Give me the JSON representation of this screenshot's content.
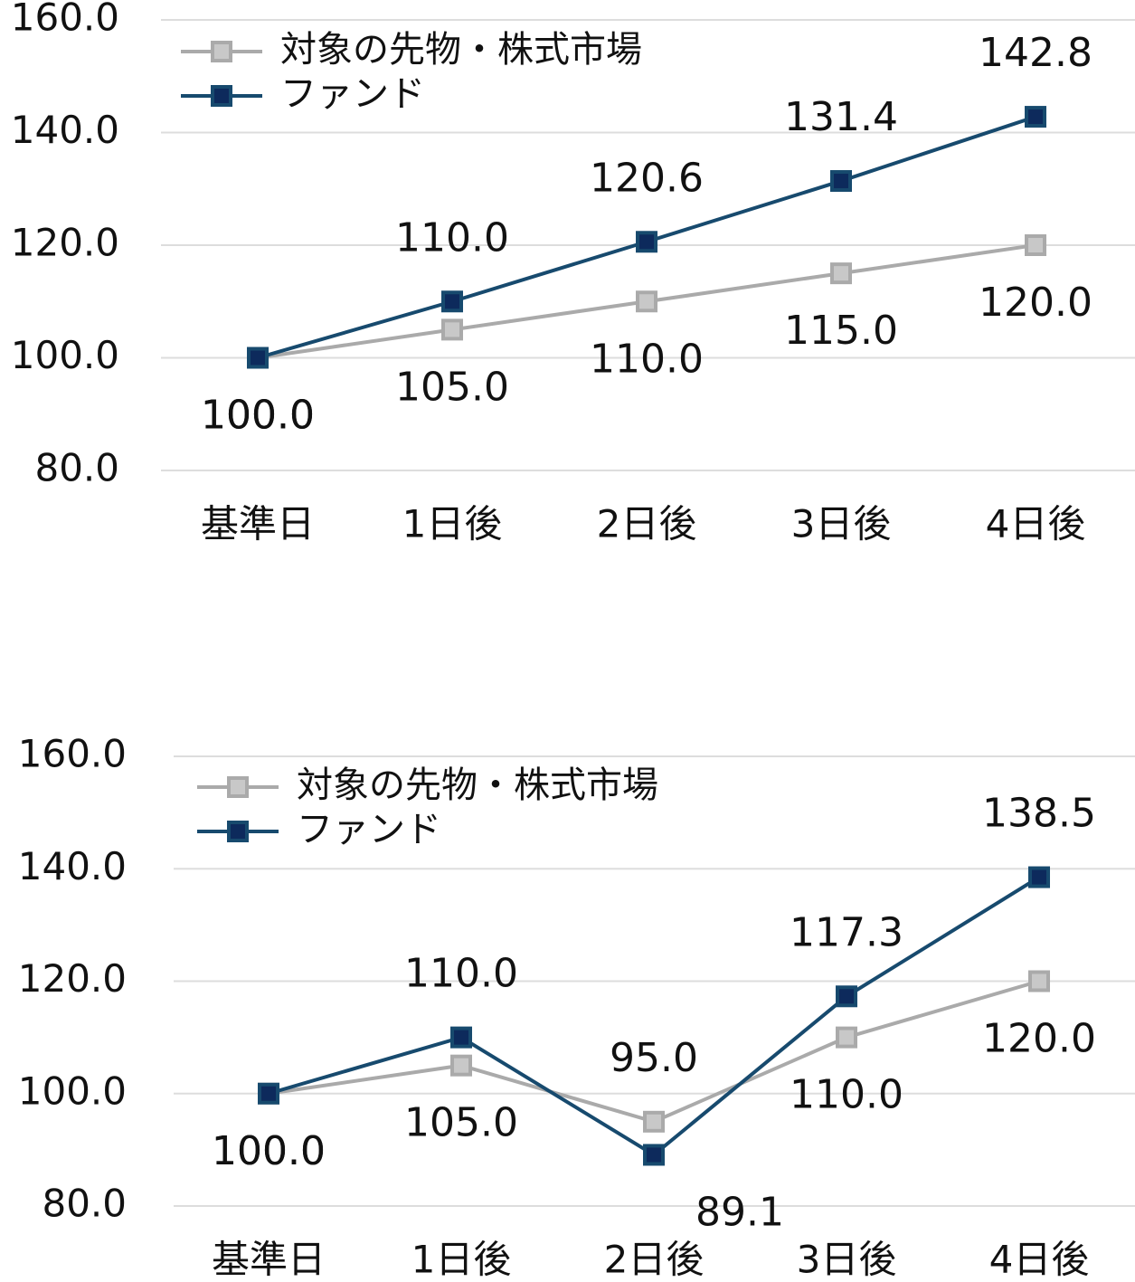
{
  "chart_data": [
    {
      "type": "line",
      "categories": [
        "基準日",
        "1日後",
        "2日後",
        "3日後",
        "4日後"
      ],
      "series": [
        {
          "name": "対象の先物・株式市場",
          "color": "#aaaaaa",
          "values": [
            100,
            105,
            110,
            115,
            120
          ],
          "value_labels": [
            "100.0",
            "105.0",
            "110.0",
            "115.0",
            "120.0"
          ]
        },
        {
          "name": "ファンド",
          "color": "#174a6e",
          "values": [
            100,
            110,
            120.6,
            131.4,
            142.8
          ],
          "value_labels": [
            "100.0",
            "110.0",
            "120.6",
            "131.4",
            "142.8"
          ]
        }
      ],
      "ylim": [
        80,
        160
      ],
      "yticks": [
        {
          "value": 80,
          "label": "80.0"
        },
        {
          "value": 100,
          "label": "100.0"
        },
        {
          "value": 120,
          "label": "120.0"
        },
        {
          "value": 140,
          "label": "140.0"
        },
        {
          "value": 160,
          "label": "160.0"
        }
      ],
      "grid": true,
      "legend": "top-left"
    },
    {
      "type": "line",
      "categories": [
        "基準日",
        "1日後",
        "2日後",
        "3日後",
        "4日後"
      ],
      "series": [
        {
          "name": "対象の先物・株式市場",
          "color": "#aaaaaa",
          "values": [
            100,
            105,
            95,
            110,
            120
          ],
          "value_labels": [
            "100.0",
            "105.0",
            "95.0",
            "110.0",
            "120.0"
          ]
        },
        {
          "name": "ファンド",
          "color": "#174a6e",
          "values": [
            100,
            110,
            89.1,
            117.3,
            138.5
          ],
          "value_labels": [
            "100.0",
            "110.0",
            "89.1",
            "117.3",
            "138.5"
          ]
        }
      ],
      "ylim": [
        80,
        160
      ],
      "yticks": [
        {
          "value": 80,
          "label": "80.0"
        },
        {
          "value": 100,
          "label": "100.0"
        },
        {
          "value": 120,
          "label": "120.0"
        },
        {
          "value": 140,
          "label": "140.0"
        },
        {
          "value": 160,
          "label": "160.0"
        }
      ],
      "grid": true,
      "legend": "top-left"
    }
  ]
}
